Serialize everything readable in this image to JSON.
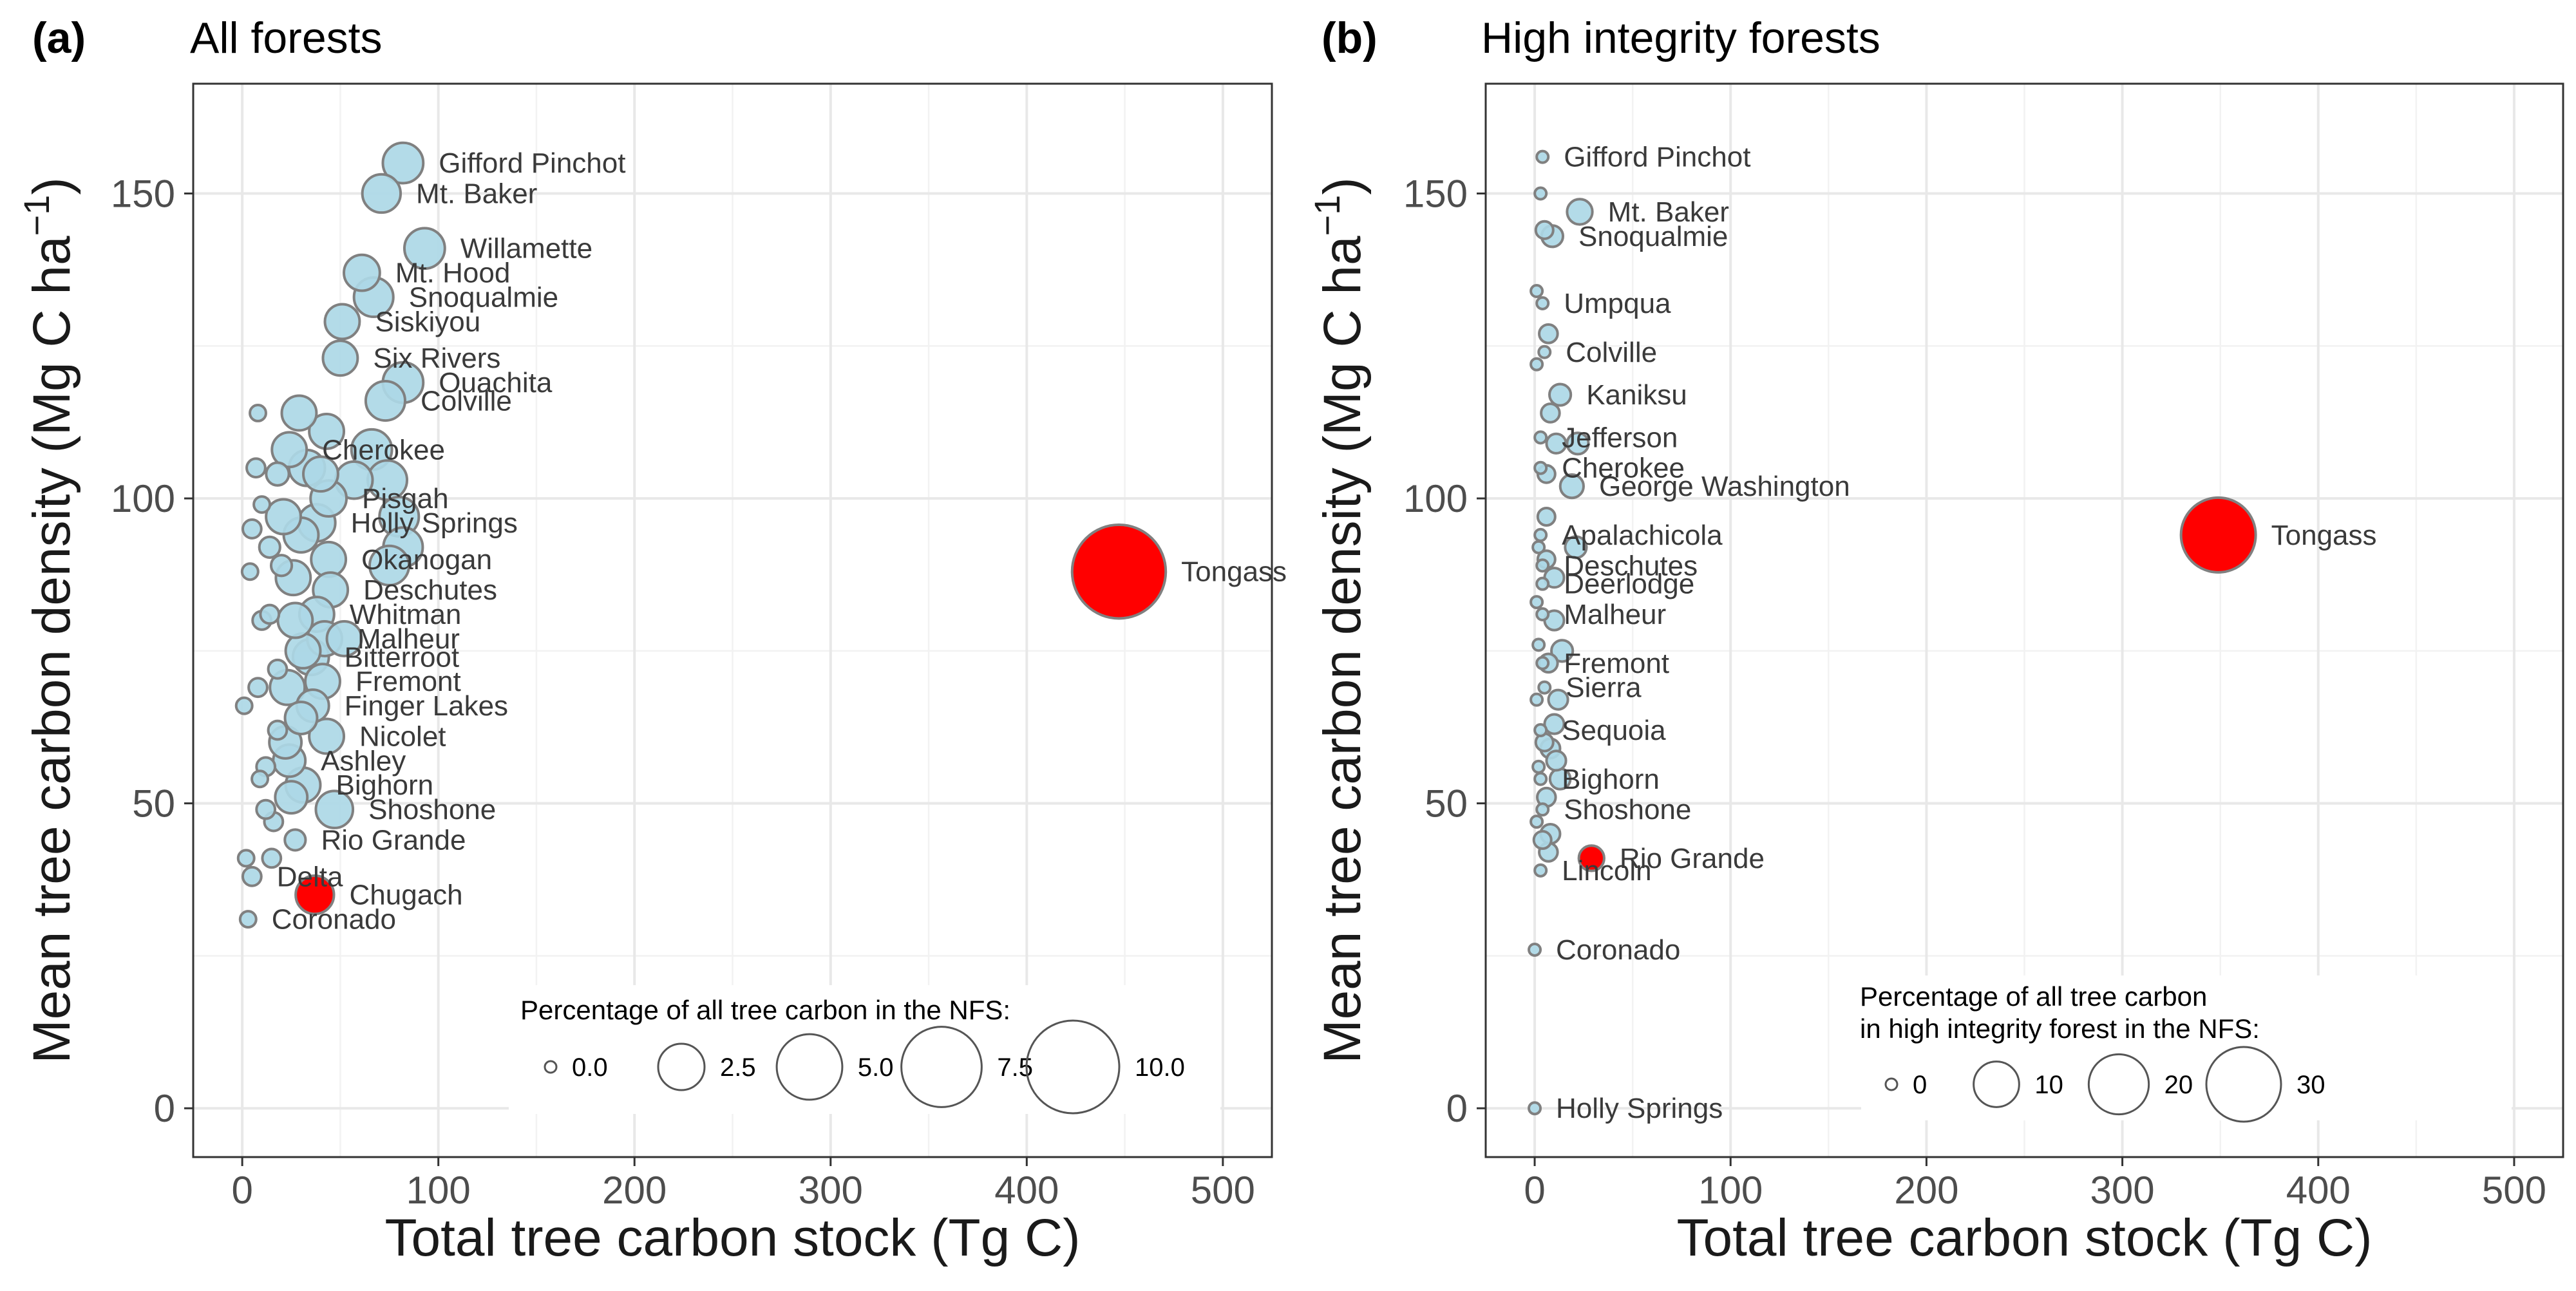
{
  "chart_data": [
    {
      "type": "scatter",
      "panel_tag": "(a)",
      "title": "All forests",
      "xlabel": "Total tree carbon stock (Tg C)",
      "ylabel": "Mean tree carbon density (Mg C ha",
      "ylabel_sup": "−1",
      "ylabel_close": ")",
      "xlim": [
        -25,
        525
      ],
      "ylim": [
        -8,
        168
      ],
      "xticks": [
        0,
        100,
        200,
        300,
        400,
        500
      ],
      "yticks": [
        0,
        50,
        100,
        150
      ],
      "grid": true,
      "colors": {
        "default": "#add8e6",
        "highlight": "#ff0000",
        "stroke": "#808080"
      },
      "size_legend": {
        "title": "Percentage of all tree carbon in the NFS:",
        "breaks": [
          0,
          2.5,
          5,
          7.5,
          10
        ],
        "labels": [
          "0.0",
          "2.5",
          "5.0",
          "7.5",
          "10.0"
        ],
        "max_value": 10,
        "position": "bottom-right"
      },
      "points": [
        {
          "x": 447,
          "y": 88,
          "size": 10.2,
          "label": "Tongass",
          "highlight": true
        },
        {
          "x": 37,
          "y": 35,
          "size": 1.7,
          "label": "Chugach",
          "highlight": true
        },
        {
          "x": 82,
          "y": 155,
          "size": 1.9,
          "label": "Gifford Pinchot"
        },
        {
          "x": 71,
          "y": 150,
          "size": 1.7,
          "label": "Mt. Baker"
        },
        {
          "x": 93,
          "y": 141,
          "size": 1.9,
          "label": "Willamette"
        },
        {
          "x": 61,
          "y": 137,
          "size": 1.5,
          "label": "Mt. Hood"
        },
        {
          "x": 67,
          "y": 133,
          "size": 1.8,
          "label": "Snoqualmie"
        },
        {
          "x": 51,
          "y": 129,
          "size": 1.4,
          "label": "Siskiyou"
        },
        {
          "x": 50,
          "y": 123,
          "size": 1.4,
          "label": "Six Rivers"
        },
        {
          "x": 82,
          "y": 119,
          "size": 1.9,
          "label": "Ouachita"
        },
        {
          "x": 73,
          "y": 116,
          "size": 1.8,
          "label": "Colville"
        },
        {
          "x": 43,
          "y": 111,
          "size": 1.4
        },
        {
          "x": 29,
          "y": 114,
          "size": 1.4
        },
        {
          "x": 24,
          "y": 108,
          "size": 1.4,
          "label": "Cherokee"
        },
        {
          "x": 57,
          "y": 103,
          "size": 1.6
        },
        {
          "x": 66,
          "y": 108,
          "size": 1.9
        },
        {
          "x": 74,
          "y": 103,
          "size": 1.8
        },
        {
          "x": 44,
          "y": 100,
          "size": 1.5,
          "label": "Pisgah"
        },
        {
          "x": 38,
          "y": 96,
          "size": 1.6,
          "label": "Holly Springs"
        },
        {
          "x": 80,
          "y": 97,
          "size": 1.8
        },
        {
          "x": 82,
          "y": 92,
          "size": 1.8
        },
        {
          "x": 44,
          "y": 90,
          "size": 1.4,
          "label": "Okanogan"
        },
        {
          "x": 75,
          "y": 89,
          "size": 1.8
        },
        {
          "x": 45,
          "y": 85,
          "size": 1.4,
          "label": "Deschutes"
        },
        {
          "x": 38,
          "y": 81,
          "size": 1.4,
          "label": "Whitman"
        },
        {
          "x": 42,
          "y": 77,
          "size": 1.4,
          "label": "Malheur"
        },
        {
          "x": 35,
          "y": 74,
          "size": 1.5,
          "label": "Bitterroot"
        },
        {
          "x": 41,
          "y": 70,
          "size": 1.4,
          "label": "Fremont"
        },
        {
          "x": 36,
          "y": 66,
          "size": 1.2,
          "label": "Finger Lakes"
        },
        {
          "x": 43,
          "y": 61,
          "size": 1.4,
          "label": "Nicolet"
        },
        {
          "x": 24,
          "y": 57,
          "size": 1.2,
          "label": "Ashley"
        },
        {
          "x": 31,
          "y": 53,
          "size": 1.4,
          "label": "Bighorn"
        },
        {
          "x": 47,
          "y": 49,
          "size": 1.6,
          "label": "Shoshone"
        },
        {
          "x": 27,
          "y": 44,
          "size": 0.5,
          "label": "Rio Grande"
        },
        {
          "x": 5,
          "y": 38,
          "size": 0.4,
          "label": "Delta"
        },
        {
          "x": 3,
          "y": 31,
          "size": 0.3,
          "label": "Coronado"
        },
        {
          "x": 30,
          "y": 94,
          "size": 1.4
        },
        {
          "x": 21,
          "y": 97,
          "size": 1.4
        },
        {
          "x": 26,
          "y": 87,
          "size": 1.4
        },
        {
          "x": 31,
          "y": 75,
          "size": 1.4
        },
        {
          "x": 23,
          "y": 69,
          "size": 1.4
        },
        {
          "x": 27,
          "y": 80,
          "size": 1.4
        },
        {
          "x": 22,
          "y": 60,
          "size": 1.2
        },
        {
          "x": 25,
          "y": 51,
          "size": 1.2
        },
        {
          "x": 33,
          "y": 105,
          "size": 1.5
        },
        {
          "x": 40,
          "y": 104,
          "size": 1.4
        },
        {
          "x": 52,
          "y": 77,
          "size": 1.4
        },
        {
          "x": 30,
          "y": 64,
          "size": 1.2
        },
        {
          "x": 18,
          "y": 104,
          "size": 0.6
        },
        {
          "x": 14,
          "y": 92,
          "size": 0.5
        },
        {
          "x": 10,
          "y": 80,
          "size": 0.4
        },
        {
          "x": 8,
          "y": 69,
          "size": 0.4
        },
        {
          "x": 12,
          "y": 56,
          "size": 0.4
        },
        {
          "x": 16,
          "y": 47,
          "size": 0.4
        },
        {
          "x": 18,
          "y": 62,
          "size": 0.4
        },
        {
          "x": 20,
          "y": 89,
          "size": 0.5
        },
        {
          "x": 5,
          "y": 95,
          "size": 0.4
        },
        {
          "x": 7,
          "y": 105,
          "size": 0.4
        },
        {
          "x": 8,
          "y": 114,
          "size": 0.3
        },
        {
          "x": 4,
          "y": 88,
          "size": 0.3
        },
        {
          "x": 1,
          "y": 66,
          "size": 0.3
        },
        {
          "x": 9,
          "y": 54,
          "size": 0.3
        },
        {
          "x": 2,
          "y": 41,
          "size": 0.3
        },
        {
          "x": 12,
          "y": 49,
          "size": 0.4
        },
        {
          "x": 14,
          "y": 81,
          "size": 0.4
        },
        {
          "x": 15,
          "y": 41,
          "size": 0.4
        },
        {
          "x": 18,
          "y": 72,
          "size": 0.4
        },
        {
          "x": 10,
          "y": 99,
          "size": 0.3
        }
      ]
    },
    {
      "type": "scatter",
      "panel_tag": "(b)",
      "title": "High integrity forests",
      "xlabel": "Total tree carbon stock (Tg C)",
      "ylabel": "Mean tree carbon density (Mg C ha",
      "ylabel_sup": "−1",
      "ylabel_close": ")",
      "xlim": [
        -25,
        525
      ],
      "ylim": [
        -8,
        168
      ],
      "xticks": [
        0,
        100,
        200,
        300,
        400,
        500
      ],
      "yticks": [
        0,
        50,
        100,
        150
      ],
      "grid": true,
      "colors": {
        "default": "#add8e6",
        "highlight": "#ff0000",
        "stroke": "#808080"
      },
      "size_legend": {
        "title": "Percentage of all tree carbon",
        "title_line2": " in high integrity forest in the NFS:",
        "breaks": [
          0,
          10,
          20,
          30
        ],
        "labels": [
          "0",
          "10",
          "20",
          "30"
        ],
        "max_value": 30,
        "position": "bottom-right"
      },
      "points": [
        {
          "x": 349,
          "y": 94,
          "size": 30,
          "label": "Tongass",
          "highlight": true
        },
        {
          "x": 29,
          "y": 41,
          "size": 5,
          "label": "Rio Grande",
          "highlight": true
        },
        {
          "x": 4,
          "y": 156,
          "size": 0.4,
          "label": "Gifford Pinchot"
        },
        {
          "x": 23,
          "y": 147,
          "size": 5,
          "label": "Mt. Baker"
        },
        {
          "x": 9,
          "y": 143,
          "size": 3,
          "label": "Snoqualmie"
        },
        {
          "x": 4,
          "y": 132,
          "size": 0.4,
          "label": "Umpqua"
        },
        {
          "x": 5,
          "y": 124,
          "size": 0.4,
          "label": "Colville"
        },
        {
          "x": 13,
          "y": 117,
          "size": 3,
          "label": "Kaniksu"
        },
        {
          "x": 3,
          "y": 110,
          "size": 0.5,
          "label": "Jefferson"
        },
        {
          "x": 3,
          "y": 105,
          "size": 0.5,
          "label": "Cherokee"
        },
        {
          "x": 19,
          "y": 102,
          "size": 4,
          "label": "George Washington"
        },
        {
          "x": 3,
          "y": 94,
          "size": 0.5,
          "label": "Apalachicola"
        },
        {
          "x": 4,
          "y": 89,
          "size": 0.5,
          "label": "Deschutes"
        },
        {
          "x": 4,
          "y": 86,
          "size": 0.5,
          "label": "Deerlodge"
        },
        {
          "x": 4,
          "y": 81,
          "size": 0.5,
          "label": "Malheur"
        },
        {
          "x": 4,
          "y": 73,
          "size": 0.5,
          "label": "Fremont"
        },
        {
          "x": 5,
          "y": 69,
          "size": 0.5,
          "label": "Sierra"
        },
        {
          "x": 3,
          "y": 62,
          "size": 0.5,
          "label": "Sequoia"
        },
        {
          "x": 3,
          "y": 54,
          "size": 0.5,
          "label": "Bighorn"
        },
        {
          "x": 4,
          "y": 49,
          "size": 0.5,
          "label": "Shoshone"
        },
        {
          "x": 3,
          "y": 39,
          "size": 0.5,
          "label": "Lincoln"
        },
        {
          "x": 0,
          "y": 26,
          "size": 0.5,
          "label": "Coronado"
        },
        {
          "x": 0,
          "y": 0,
          "size": 0.5,
          "label": "Holly Springs"
        },
        {
          "x": 8,
          "y": 114,
          "size": 1.5
        },
        {
          "x": 11,
          "y": 109,
          "size": 2
        },
        {
          "x": 22,
          "y": 109,
          "size": 3
        },
        {
          "x": 6,
          "y": 104,
          "size": 1
        },
        {
          "x": 21,
          "y": 92,
          "size": 3
        },
        {
          "x": 10,
          "y": 87,
          "size": 2
        },
        {
          "x": 10,
          "y": 80,
          "size": 2
        },
        {
          "x": 14,
          "y": 75,
          "size": 3
        },
        {
          "x": 7,
          "y": 73,
          "size": 1.5
        },
        {
          "x": 12,
          "y": 67,
          "size": 2
        },
        {
          "x": 10,
          "y": 63,
          "size": 2
        },
        {
          "x": 8,
          "y": 59,
          "size": 2
        },
        {
          "x": 11,
          "y": 57,
          "size": 2
        },
        {
          "x": 13,
          "y": 54,
          "size": 2.5
        },
        {
          "x": 6,
          "y": 51,
          "size": 1.5
        },
        {
          "x": 8,
          "y": 45,
          "size": 2
        },
        {
          "x": 7,
          "y": 42,
          "size": 1.5
        },
        {
          "x": 5,
          "y": 144,
          "size": 1
        },
        {
          "x": 3,
          "y": 150,
          "size": 0.4
        },
        {
          "x": 1,
          "y": 134,
          "size": 0.4
        },
        {
          "x": 7,
          "y": 127,
          "size": 1.5
        },
        {
          "x": 1,
          "y": 122,
          "size": 0.4
        },
        {
          "x": 6,
          "y": 97,
          "size": 1
        },
        {
          "x": 2,
          "y": 92,
          "size": 0.4
        },
        {
          "x": 6,
          "y": 90,
          "size": 1
        },
        {
          "x": 1,
          "y": 83,
          "size": 0.4
        },
        {
          "x": 2,
          "y": 76,
          "size": 0.5
        },
        {
          "x": 1,
          "y": 67,
          "size": 0.4
        },
        {
          "x": 5,
          "y": 60,
          "size": 1
        },
        {
          "x": 2,
          "y": 56,
          "size": 0.5
        },
        {
          "x": 1,
          "y": 47,
          "size": 0.4
        },
        {
          "x": 4,
          "y": 44,
          "size": 1
        }
      ]
    }
  ]
}
